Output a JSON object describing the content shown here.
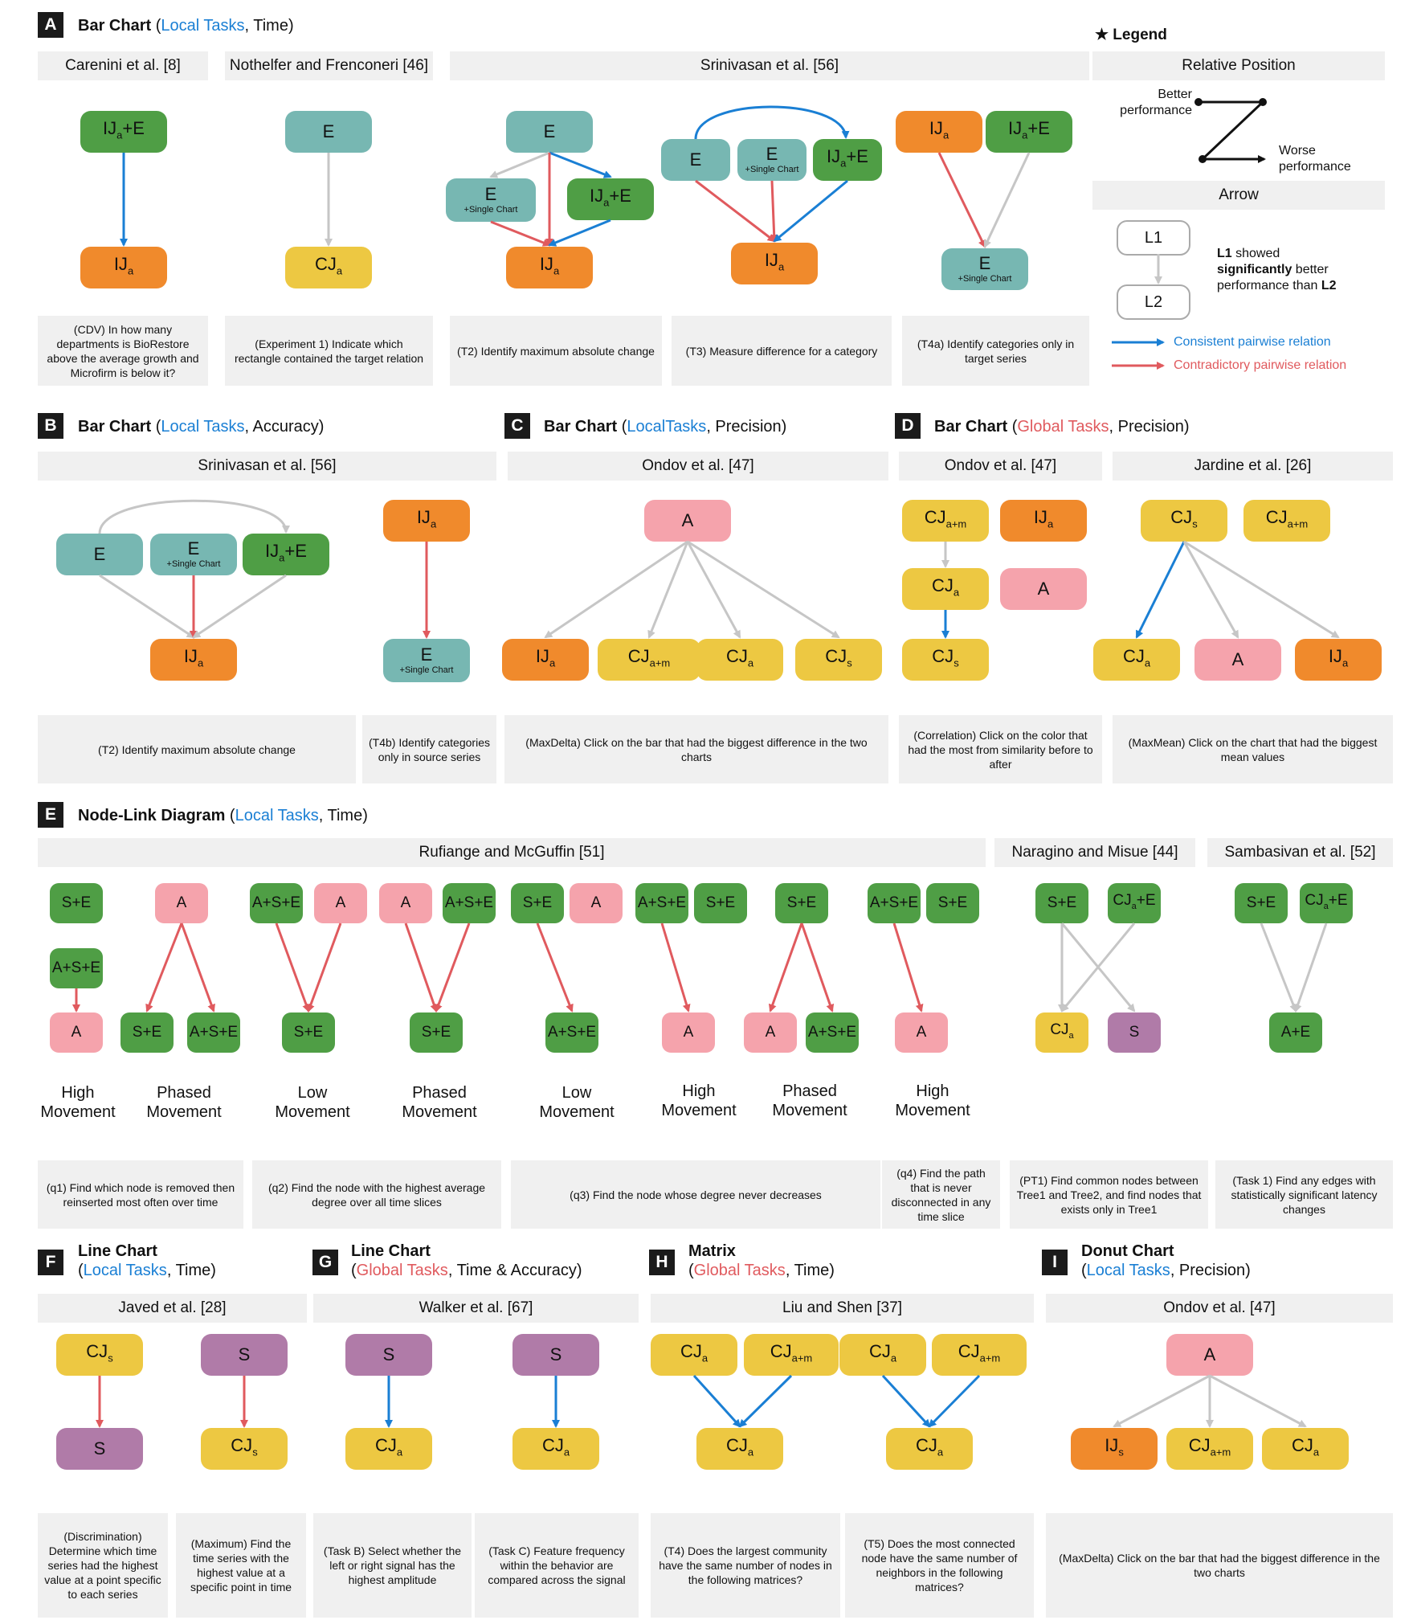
{
  "colors": {
    "green": "#4f9e45",
    "orange": "#f08a2c",
    "teal": "#77b7b2",
    "yellow": "#edc842",
    "pink": "#f5a3ac",
    "purple": "#b07ba8",
    "blue_edge": "#1a7fd4",
    "red_edge": "#e05a5e",
    "gray_edge": "#c6c6c6"
  },
  "sections": {
    "A": {
      "letter": "A",
      "title": "Bar Chart",
      "open": "(",
      "task": "Local Tasks",
      "rest": ", Time)"
    },
    "B": {
      "letter": "B",
      "title": "Bar Chart",
      "open": "(",
      "task": "Local Tasks",
      "rest": ", Accuracy)"
    },
    "C": {
      "letter": "C",
      "title": "Bar Chart",
      "open": "(",
      "task": "LocalTasks",
      "rest": ", Precision)"
    },
    "D": {
      "letter": "D",
      "title": "Bar Chart",
      "open": "(",
      "task": "Global Tasks",
      "rest": ", Precision)"
    },
    "E": {
      "letter": "E",
      "title": "Node-Link Diagram",
      "open": "(",
      "task": "Local Tasks",
      "rest": ", Time)"
    },
    "F": {
      "letter": "F",
      "title": "Line Chart",
      "open": "(",
      "task": "Local Tasks",
      "rest": ", Time)"
    },
    "G": {
      "letter": "G",
      "title": "Line Chart",
      "open": "(",
      "task": "Global Tasks",
      "rest": ", Time & Accuracy)"
    },
    "H": {
      "letter": "H",
      "title": "Matrix",
      "open": "(",
      "task": "Global Tasks",
      "rest": ", Time)"
    },
    "I": {
      "letter": "I",
      "title": "Donut Chart",
      "open": "(",
      "task": "Local Tasks",
      "rest": ", Precision)"
    }
  },
  "headers": {
    "carenini": "Carenini et al. [8]",
    "nothelfer": "Nothelfer and Frenconeri [46]",
    "srinivasanA": "Srinivasan et al. [56]",
    "srinivasanB": "Srinivasan et al. [56]",
    "ondovC": "Ondov et al. [47]",
    "ondovD": "Ondov et al. [47]",
    "jardine": "Jardine et al. [26]",
    "rufiange": "Rufiange and McGuffin [51]",
    "naragino": "Naragino and Misue [44]",
    "sambasivan": "Sambasivan et al. [52]",
    "javed": "Javed et al. [28]",
    "walker": "Walker et al. [67]",
    "liu": "Liu and Shen [37]",
    "ondovI": "Ondov et al. [47]"
  },
  "tasks": {
    "a1": "(CDV) In how many departments is BioRestore above the average growth and Microfirm is below it?",
    "a2": "(Experiment 1) Indicate which rectangle contained the target relation",
    "a3": "(T2) Identify maximum absolute change",
    "a4": "(T3) Measure difference for a category",
    "a5": "(T4a) Identify categories only in target series",
    "b1": "(T2) Identify maximum absolute change",
    "b2": "(T4b) Identify categories only in source series",
    "c1": "(MaxDelta) Click on the bar that had the biggest difference in the two charts",
    "d1": "(Correlation) Click on the color that had the most from similarity before to after",
    "d2": "(MaxMean) Click on the chart that had the biggest mean values",
    "e1": "(q1) Find which node is removed then reinserted most often over time",
    "e2": "(q2) Find the node with the highest average degree over all time slices",
    "e3": "(q3) Find the node whose degree never decreases",
    "e4": "(q4) Find the path that is never disconnected in any time slice",
    "e5": "(PT1) Find common nodes between Tree1 and Tree2, and find nodes that exists only in Tree1",
    "e6": "(Task 1) Find any edges with statistically significant latency changes",
    "f1": "(Discrimination) Determine which time series had the highest value at a point specific to each series",
    "f2": "(Maximum) Find the time series with the highest value at a specific point in time",
    "g1": "(Task B) Select whether the left or right signal has the highest amplitude",
    "g2": "(Task C) Feature frequency within the behavior are compared across the signal",
    "h1": "(T4) Does the largest community have the same number of nodes in the following matrices?",
    "h2": "(T5) Does the most connected node have the same number of neighbors in the following matrices?",
    "i1": "(MaxDelta) Click on the bar that had the biggest difference in the two charts"
  },
  "movements": {
    "m1": [
      "High",
      "Movement"
    ],
    "m2": [
      "Phased",
      "Movement"
    ],
    "m3": [
      "Low",
      "Movement"
    ],
    "m4": [
      "Phased",
      "Movement"
    ],
    "m5": [
      "Low",
      "Movement"
    ],
    "m6": [
      "High",
      "Movement"
    ],
    "m7": [
      "Phased",
      "Movement"
    ],
    "m8": [
      "High",
      "Movement"
    ]
  },
  "legend": {
    "title": "★ Legend",
    "relpos": "Relative Position",
    "better": [
      "Better",
      "performance"
    ],
    "worse": [
      "Worse",
      "performance"
    ],
    "arrow": "Arrow",
    "l1": "L1",
    "l2": "L2",
    "desc_a": "L1",
    "desc_b": " showed",
    "desc_c": "significantly",
    "desc_d": " better",
    "desc_e": "performance than ",
    "desc_f": "L2",
    "consistent": "Consistent pairwise relation",
    "contradictory": "Contradictory pairwise relation"
  },
  "nodes": [
    {
      "id": "a_ije1",
      "color": "green",
      "m": "IJ",
      "s": "a",
      "t": "+E"
    },
    {
      "id": "a_ija1",
      "color": "orange",
      "m": "IJ",
      "s": "a"
    },
    {
      "id": "a_e2",
      "color": "teal",
      "m": "E"
    },
    {
      "id": "a_cja2",
      "color": "yellow",
      "m": "CJ",
      "s": "a"
    },
    {
      "id": "a_e3",
      "color": "teal",
      "m": "E"
    },
    {
      "id": "a_es3",
      "color": "teal",
      "m": "E",
      "sub": "+Single Chart"
    },
    {
      "id": "a_ije3",
      "color": "green",
      "m": "IJ",
      "s": "a",
      "t": "+E"
    },
    {
      "id": "a_ija3",
      "color": "orange",
      "m": "IJ",
      "s": "a"
    },
    {
      "id": "a_e4",
      "color": "teal",
      "m": "E"
    },
    {
      "id": "a_es4",
      "color": "teal",
      "m": "E",
      "sub": "+Single Chart"
    },
    {
      "id": "a_ije4",
      "color": "green",
      "m": "IJ",
      "s": "a",
      "t": "+E"
    },
    {
      "id": "a_ija4",
      "color": "orange",
      "m": "IJ",
      "s": "a"
    },
    {
      "id": "a_ija5",
      "color": "orange",
      "m": "IJ",
      "s": "a"
    },
    {
      "id": "a_ije5",
      "color": "green",
      "m": "IJ",
      "s": "a",
      "t": "+E"
    },
    {
      "id": "a_es5",
      "color": "teal",
      "m": "E",
      "sub": "+Single Chart"
    },
    {
      "id": "b_e1",
      "color": "teal",
      "m": "E"
    },
    {
      "id": "b_es1",
      "color": "teal",
      "m": "E",
      "sub": "+Single Chart"
    },
    {
      "id": "b_ije1",
      "color": "green",
      "m": "IJ",
      "s": "a",
      "t": "+E"
    },
    {
      "id": "b_ija1",
      "color": "orange",
      "m": "IJ",
      "s": "a"
    },
    {
      "id": "b_ija2",
      "color": "orange",
      "m": "IJ",
      "s": "a"
    },
    {
      "id": "b_es2",
      "color": "teal",
      "m": "E",
      "sub": "+Single Chart"
    },
    {
      "id": "c_a",
      "color": "pink",
      "m": "A"
    },
    {
      "id": "c_ija",
      "color": "orange",
      "m": "IJ",
      "s": "a"
    },
    {
      "id": "c_cjam",
      "color": "yellow",
      "m": "CJ",
      "s": "a+m"
    },
    {
      "id": "c_cja",
      "color": "yellow",
      "m": "CJ",
      "s": "a"
    },
    {
      "id": "c_cjs",
      "color": "yellow",
      "m": "CJ",
      "s": "s"
    },
    {
      "id": "d_cjam",
      "color": "yellow",
      "m": "CJ",
      "s": "a+m"
    },
    {
      "id": "d_ija",
      "color": "orange",
      "m": "IJ",
      "s": "a"
    },
    {
      "id": "d_cja",
      "color": "yellow",
      "m": "CJ",
      "s": "a"
    },
    {
      "id": "d_a",
      "color": "pink",
      "m": "A"
    },
    {
      "id": "d_cjs",
      "color": "yellow",
      "m": "CJ",
      "s": "s"
    },
    {
      "id": "d2_cjs",
      "color": "yellow",
      "m": "CJ",
      "s": "s"
    },
    {
      "id": "d2_cjam",
      "color": "yellow",
      "m": "CJ",
      "s": "a+m"
    },
    {
      "id": "d2_cja",
      "color": "yellow",
      "m": "CJ",
      "s": "a"
    },
    {
      "id": "d2_a",
      "color": "pink",
      "m": "A"
    },
    {
      "id": "d2_ija",
      "color": "orange",
      "m": "IJ",
      "s": "a"
    },
    {
      "id": "e1_se",
      "color": "green",
      "m": "S+E",
      "sm": true
    },
    {
      "id": "e1_ase",
      "color": "green",
      "m": "A+S+E",
      "sm": true
    },
    {
      "id": "e1_a",
      "color": "pink",
      "m": "A",
      "sm": true
    },
    {
      "id": "e2_a",
      "color": "pink",
      "m": "A",
      "sm": true
    },
    {
      "id": "e2_se",
      "color": "green",
      "m": "S+E",
      "sm": true
    },
    {
      "id": "e2_ase",
      "color": "green",
      "m": "A+S+E",
      "sm": true
    },
    {
      "id": "e3_ase",
      "color": "green",
      "m": "A+S+E",
      "sm": true
    },
    {
      "id": "e3_a",
      "color": "pink",
      "m": "A",
      "sm": true
    },
    {
      "id": "e3_se",
      "color": "green",
      "m": "S+E",
      "sm": true
    },
    {
      "id": "e4_a",
      "color": "pink",
      "m": "A",
      "sm": true
    },
    {
      "id": "e4_ase",
      "color": "green",
      "m": "A+S+E",
      "sm": true
    },
    {
      "id": "e4_se",
      "color": "green",
      "m": "S+E",
      "sm": true
    },
    {
      "id": "e5_se",
      "color": "green",
      "m": "S+E",
      "sm": true
    },
    {
      "id": "e5_a",
      "color": "pink",
      "m": "A",
      "sm": true
    },
    {
      "id": "e5_ase",
      "color": "green",
      "m": "A+S+E",
      "sm": true
    },
    {
      "id": "e6_ase",
      "color": "green",
      "m": "A+S+E",
      "sm": true
    },
    {
      "id": "e6_se",
      "color": "green",
      "m": "S+E",
      "sm": true
    },
    {
      "id": "e6_a",
      "color": "pink",
      "m": "A",
      "sm": true
    },
    {
      "id": "e7_se",
      "color": "green",
      "m": "S+E",
      "sm": true
    },
    {
      "id": "e7_a",
      "color": "pink",
      "m": "A",
      "sm": true
    },
    {
      "id": "e7_ase",
      "color": "green",
      "m": "A+S+E",
      "sm": true
    },
    {
      "id": "e8_ase",
      "color": "green",
      "m": "A+S+E",
      "sm": true
    },
    {
      "id": "e8_se",
      "color": "green",
      "m": "S+E",
      "sm": true
    },
    {
      "id": "e8_a",
      "color": "pink",
      "m": "A",
      "sm": true
    },
    {
      "id": "e9_se",
      "color": "green",
      "m": "S+E",
      "sm": true
    },
    {
      "id": "e9_cjae",
      "color": "green",
      "m": "CJ",
      "s": "a",
      "t": "+E",
      "sm": true
    },
    {
      "id": "e9_cja",
      "color": "yellow",
      "m": "CJ",
      "s": "a",
      "sm": true
    },
    {
      "id": "e9_s",
      "color": "purple",
      "m": "S",
      "sm": true
    },
    {
      "id": "e10_se",
      "color": "green",
      "m": "S+E",
      "sm": true
    },
    {
      "id": "e10_cjae",
      "color": "green",
      "m": "CJ",
      "s": "a",
      "t": "+E",
      "sm": true
    },
    {
      "id": "e10_ae",
      "color": "green",
      "m": "A+E",
      "sm": true
    },
    {
      "id": "f_cjs1",
      "color": "yellow",
      "m": "CJ",
      "s": "s"
    },
    {
      "id": "f_s1",
      "color": "purple",
      "m": "S"
    },
    {
      "id": "f_s2",
      "color": "purple",
      "m": "S"
    },
    {
      "id": "f_cjs2",
      "color": "yellow",
      "m": "CJ",
      "s": "s"
    },
    {
      "id": "g_s1",
      "color": "purple",
      "m": "S"
    },
    {
      "id": "g_cja1",
      "color": "yellow",
      "m": "CJ",
      "s": "a"
    },
    {
      "id": "g_s2",
      "color": "purple",
      "m": "S"
    },
    {
      "id": "g_cja2",
      "color": "yellow",
      "m": "CJ",
      "s": "a"
    },
    {
      "id": "h_cja1",
      "color": "yellow",
      "m": "CJ",
      "s": "a"
    },
    {
      "id": "h_cjam1",
      "color": "yellow",
      "m": "CJ",
      "s": "a+m"
    },
    {
      "id": "h_cja1b",
      "color": "yellow",
      "m": "CJ",
      "s": "a"
    },
    {
      "id": "h_cja2",
      "color": "yellow",
      "m": "CJ",
      "s": "a"
    },
    {
      "id": "h_cjam2",
      "color": "yellow",
      "m": "CJ",
      "s": "a+m"
    },
    {
      "id": "h_cja2b",
      "color": "yellow",
      "m": "CJ",
      "s": "a"
    },
    {
      "id": "i_a",
      "color": "pink",
      "m": "A"
    },
    {
      "id": "i_ijs",
      "color": "orange",
      "m": "IJ",
      "s": "s"
    },
    {
      "id": "i_cjam",
      "color": "yellow",
      "m": "CJ",
      "s": "a+m"
    },
    {
      "id": "i_cja",
      "color": "yellow",
      "m": "CJ",
      "s": "a"
    },
    {
      "id": "leg_l1",
      "color": "white",
      "m": "L1"
    },
    {
      "id": "leg_l2",
      "color": "white",
      "m": "L2"
    }
  ]
}
